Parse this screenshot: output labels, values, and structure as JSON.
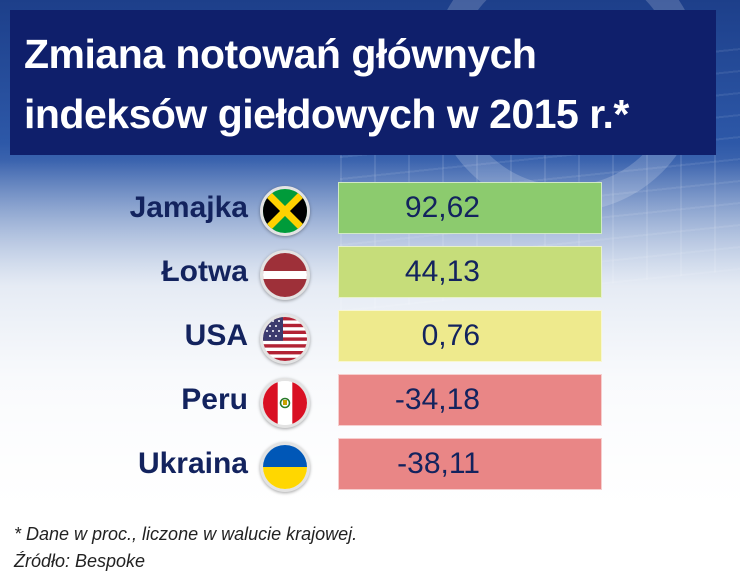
{
  "title": "Zmiana notowań głównych indeksów giełdowych w 2015 r.*",
  "colors": {
    "title_bg": "#0f1f6b",
    "text": "#13235e",
    "positive_high": "#8ccb6e",
    "positive_mid": "#c6dd7a",
    "neutral": "#eeea8d",
    "negative": "#e98686"
  },
  "chart_data": {
    "type": "table",
    "title": "Zmiana notowań głównych indeksów giełdowych w 2015 r.*",
    "categories": [
      "Jamajka",
      "Łotwa",
      "USA",
      "Peru",
      "Ukraina"
    ],
    "values": [
      92.62,
      44.13,
      0.76,
      -34.18,
      -38.11
    ],
    "value_labels": [
      "92,62",
      "44,13",
      "0,76",
      "-34,18",
      "-38,11"
    ],
    "flags": [
      "jamaica-flag-icon",
      "latvia-flag-icon",
      "usa-flag-icon",
      "peru-flag-icon",
      "ukraine-flag-icon"
    ]
  },
  "footnote": "* Dane w proc., liczone w walucie krajowej.",
  "source": "Źródło: Bespoke"
}
